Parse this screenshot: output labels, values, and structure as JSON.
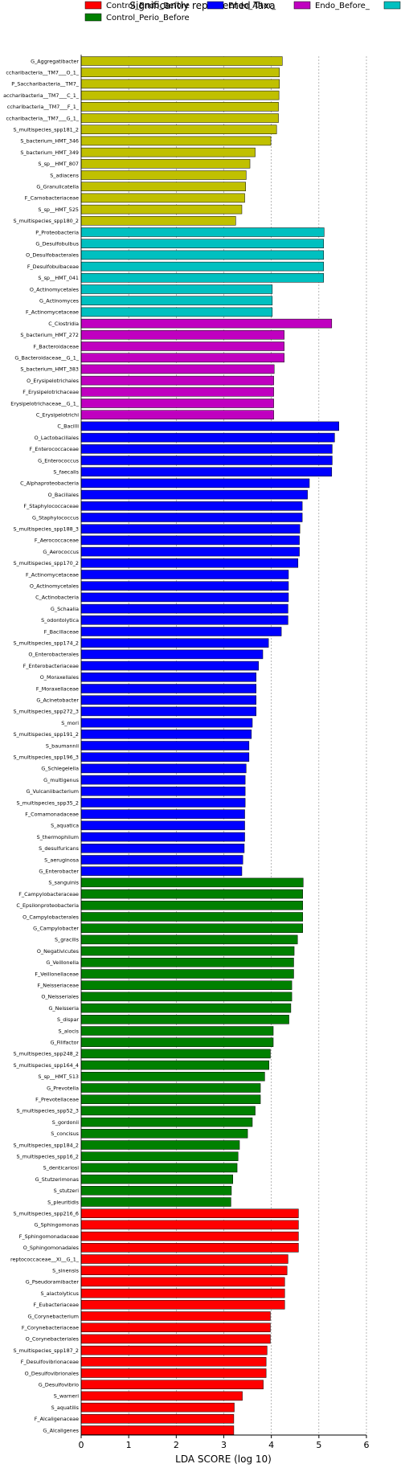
{
  "chart_data": {
    "type": "bar",
    "orientation": "horizontal",
    "title": "Significantly represented Taxa",
    "xlabel": "LDA SCORE (log 10)",
    "ylabel": "",
    "xlim": [
      0,
      6
    ],
    "xticks": [
      0,
      1,
      2,
      3,
      4,
      5,
      6
    ],
    "grid": "vertical dashed at x ticks",
    "legend_placement": "top",
    "colors": {
      "red": "#ff0000",
      "green": "#008000",
      "blue": "#0000ff",
      "magenta": "#c000c0",
      "cyan": "#00c0c0",
      "olive": "#c0c000",
      "bar_edge": "#000000",
      "grid": "#888888"
    },
    "legend": [
      {
        "label": "Control_Endo_Before",
        "color": "red"
      },
      {
        "label": "Control_Perio_Before",
        "color": "green"
      },
      {
        "label": "Endo_After_",
        "color": "blue"
      },
      {
        "label": "Endo_Before_",
        "color": "magenta"
      },
      {
        "label": "",
        "color": "cyan"
      }
    ],
    "bars": [
      {
        "label": "G_Aggregatibacter",
        "value": 4.23,
        "color": "olive"
      },
      {
        "label": "ccharibacteria__TM7___O_1_",
        "value": 4.17,
        "color": "olive"
      },
      {
        "label": "P_Saccharibacteria__TM7_",
        "value": 4.17,
        "color": "olive"
      },
      {
        "label": "accharibacteria__TM7___C_1_",
        "value": 4.16,
        "color": "olive"
      },
      {
        "label": "ccharibacteria__TM7___F_1_",
        "value": 4.15,
        "color": "olive"
      },
      {
        "label": "ccharibacteria__TM7___G_1_",
        "value": 4.15,
        "color": "olive"
      },
      {
        "label": "S_multispecies_spp181_2",
        "value": 4.11,
        "color": "olive"
      },
      {
        "label": "S_bacterium_HMT_346",
        "value": 3.99,
        "color": "olive"
      },
      {
        "label": "S_bacterium_HMT_349",
        "value": 3.66,
        "color": "olive"
      },
      {
        "label": "S_sp__HMT_807",
        "value": 3.55,
        "color": "olive"
      },
      {
        "label": "S_adiacens",
        "value": 3.47,
        "color": "olive"
      },
      {
        "label": "G_Granulicatella",
        "value": 3.46,
        "color": "olive"
      },
      {
        "label": "F_Carnobacteriaceae",
        "value": 3.44,
        "color": "olive"
      },
      {
        "label": "S_sp__HMT_525",
        "value": 3.38,
        "color": "olive"
      },
      {
        "label": "S_multispecies_spp180_2",
        "value": 3.25,
        "color": "olive"
      },
      {
        "label": "P_Proteobacteria",
        "value": 5.11,
        "color": "cyan"
      },
      {
        "label": "G_Desulfobulbus",
        "value": 5.1,
        "color": "cyan"
      },
      {
        "label": "O_Desulfobacterales",
        "value": 5.1,
        "color": "cyan"
      },
      {
        "label": "F_Desulfobulbaceae",
        "value": 5.1,
        "color": "cyan"
      },
      {
        "label": "S_sp__HMT_041",
        "value": 5.1,
        "color": "cyan"
      },
      {
        "label": "O_Actinomycetales",
        "value": 4.02,
        "color": "cyan"
      },
      {
        "label": "G_Actinomyces",
        "value": 4.02,
        "color": "cyan"
      },
      {
        "label": "F_Actinomycetaceae",
        "value": 4.02,
        "color": "cyan"
      },
      {
        "label": "C_Clostridia",
        "value": 5.27,
        "color": "magenta"
      },
      {
        "label": "S_bacterium_HMT_272",
        "value": 4.27,
        "color": "magenta"
      },
      {
        "label": "F_Bacteroidaceae",
        "value": 4.27,
        "color": "magenta"
      },
      {
        "label": "G_Bacteroidaceae__G_1_",
        "value": 4.27,
        "color": "magenta"
      },
      {
        "label": "S_bacterium_HMT_383",
        "value": 4.06,
        "color": "magenta"
      },
      {
        "label": "O_Erysipelotrichales",
        "value": 4.05,
        "color": "magenta"
      },
      {
        "label": "F_Erysipelotrichaceae",
        "value": 4.05,
        "color": "magenta"
      },
      {
        "label": "Erysipelotrichaceae__G_1_",
        "value": 4.05,
        "color": "magenta"
      },
      {
        "label": "C_Erysipelotrichi",
        "value": 4.05,
        "color": "magenta"
      },
      {
        "label": "C_Bacilli",
        "value": 5.42,
        "color": "blue"
      },
      {
        "label": "O_Lactobacillales",
        "value": 5.33,
        "color": "blue"
      },
      {
        "label": "F_Enterococcaceae",
        "value": 5.28,
        "color": "blue"
      },
      {
        "label": "G_Enterococcus",
        "value": 5.28,
        "color": "blue"
      },
      {
        "label": "S_faecalis",
        "value": 5.27,
        "color": "blue"
      },
      {
        "label": "C_Alphaproteobacteria",
        "value": 4.8,
        "color": "blue"
      },
      {
        "label": "O_Bacillales",
        "value": 4.76,
        "color": "blue"
      },
      {
        "label": "F_Staphylococcaceae",
        "value": 4.65,
        "color": "blue"
      },
      {
        "label": "G_Staphylococcus",
        "value": 4.65,
        "color": "blue"
      },
      {
        "label": "S_multispecies_spp188_3",
        "value": 4.6,
        "color": "blue"
      },
      {
        "label": "F_Aerococcaceae",
        "value": 4.59,
        "color": "blue"
      },
      {
        "label": "G_Aerococcus",
        "value": 4.59,
        "color": "blue"
      },
      {
        "label": "S_multispecies_spp170_2",
        "value": 4.56,
        "color": "blue"
      },
      {
        "label": "F_Actinomycetaceae",
        "value": 4.36,
        "color": "blue"
      },
      {
        "label": "O_Actinomycetales",
        "value": 4.36,
        "color": "blue"
      },
      {
        "label": "C_Actinobacteria",
        "value": 4.36,
        "color": "blue"
      },
      {
        "label": "G_Schaalia",
        "value": 4.35,
        "color": "blue"
      },
      {
        "label": "S_odontolytica",
        "value": 4.35,
        "color": "blue"
      },
      {
        "label": "F_Bacillaceae",
        "value": 4.21,
        "color": "blue"
      },
      {
        "label": "S_multispecies_spp174_2",
        "value": 3.94,
        "color": "blue"
      },
      {
        "label": "O_Enterobacterales",
        "value": 3.82,
        "color": "blue"
      },
      {
        "label": "F_Enterobacteriaceae",
        "value": 3.73,
        "color": "blue"
      },
      {
        "label": "O_Moraxellales",
        "value": 3.68,
        "color": "blue"
      },
      {
        "label": "F_Moraxellaceae",
        "value": 3.68,
        "color": "blue"
      },
      {
        "label": "G_Acinetobacter",
        "value": 3.68,
        "color": "blue"
      },
      {
        "label": "S_multispecies_spp272_3",
        "value": 3.68,
        "color": "blue"
      },
      {
        "label": "S_mori",
        "value": 3.6,
        "color": "blue"
      },
      {
        "label": "S_multispecies_spp191_2",
        "value": 3.58,
        "color": "blue"
      },
      {
        "label": "S_baumannii",
        "value": 3.53,
        "color": "blue"
      },
      {
        "label": "S_multispecies_spp196_3",
        "value": 3.53,
        "color": "blue"
      },
      {
        "label": "G_Schlegelella",
        "value": 3.47,
        "color": "blue"
      },
      {
        "label": "G_multigenus",
        "value": 3.45,
        "color": "blue"
      },
      {
        "label": "G_Vulcaniibacterium",
        "value": 3.45,
        "color": "blue"
      },
      {
        "label": "S_multispecies_spp35_2",
        "value": 3.45,
        "color": "blue"
      },
      {
        "label": "F_Comamonadaceae",
        "value": 3.44,
        "color": "blue"
      },
      {
        "label": "S_aquatica",
        "value": 3.44,
        "color": "blue"
      },
      {
        "label": "S_thermophilum",
        "value": 3.44,
        "color": "blue"
      },
      {
        "label": "S_desulfuricans",
        "value": 3.43,
        "color": "blue"
      },
      {
        "label": "S_aeruginosa",
        "value": 3.4,
        "color": "blue"
      },
      {
        "label": "G_Enterobacter",
        "value": 3.38,
        "color": "blue"
      },
      {
        "label": "S_sanguinis",
        "value": 4.67,
        "color": "green"
      },
      {
        "label": "F_Campylobacteraceae",
        "value": 4.66,
        "color": "green"
      },
      {
        "label": "C_Epsilonproteobacteria",
        "value": 4.66,
        "color": "green"
      },
      {
        "label": "O_Campylobacterales",
        "value": 4.66,
        "color": "green"
      },
      {
        "label": "G_Campylobacter",
        "value": 4.66,
        "color": "green"
      },
      {
        "label": "S_gracilis",
        "value": 4.55,
        "color": "green"
      },
      {
        "label": "O_Negativicutes",
        "value": 4.48,
        "color": "green"
      },
      {
        "label": "G_Veillonella",
        "value": 4.47,
        "color": "green"
      },
      {
        "label": "F_Veillonellaceae",
        "value": 4.47,
        "color": "green"
      },
      {
        "label": "F_Neisseriaceae",
        "value": 4.43,
        "color": "green"
      },
      {
        "label": "O_Neisseriales",
        "value": 4.43,
        "color": "green"
      },
      {
        "label": "G_Neisseria",
        "value": 4.41,
        "color": "green"
      },
      {
        "label": "S_dispar",
        "value": 4.37,
        "color": "green"
      },
      {
        "label": "S_alocis",
        "value": 4.04,
        "color": "green"
      },
      {
        "label": "G_Filifactor",
        "value": 4.04,
        "color": "green"
      },
      {
        "label": "S_multispecies_spp248_2",
        "value": 3.98,
        "color": "green"
      },
      {
        "label": "S_multispecies_spp164_4",
        "value": 3.95,
        "color": "green"
      },
      {
        "label": "S_sp__HMT_513",
        "value": 3.86,
        "color": "green"
      },
      {
        "label": "G_Prevotella",
        "value": 3.77,
        "color": "green"
      },
      {
        "label": "F_Prevotellaceae",
        "value": 3.77,
        "color": "green"
      },
      {
        "label": "S_multispecies_spp52_3",
        "value": 3.66,
        "color": "green"
      },
      {
        "label": "S_gordonii",
        "value": 3.6,
        "color": "green"
      },
      {
        "label": "S_concisus",
        "value": 3.5,
        "color": "green"
      },
      {
        "label": "S_multispecies_spp184_2",
        "value": 3.33,
        "color": "green"
      },
      {
        "label": "S_multispecies_spp16_2",
        "value": 3.3,
        "color": "green"
      },
      {
        "label": "S_denticariosi",
        "value": 3.28,
        "color": "green"
      },
      {
        "label": "G_Stutzerimonas",
        "value": 3.19,
        "color": "green"
      },
      {
        "label": "S_stutzeri",
        "value": 3.16,
        "color": "green"
      },
      {
        "label": "S_pleuritidis",
        "value": 3.15,
        "color": "green"
      },
      {
        "label": "S_multispecies_spp216_6",
        "value": 4.57,
        "color": "red"
      },
      {
        "label": "G_Sphingomonas",
        "value": 4.57,
        "color": "red"
      },
      {
        "label": "F_Sphingomonadaceae",
        "value": 4.57,
        "color": "red"
      },
      {
        "label": "O_Sphingomonadales",
        "value": 4.57,
        "color": "red"
      },
      {
        "label": "reptococcaceae__XI__G_1_",
        "value": 4.35,
        "color": "red"
      },
      {
        "label": "S_sinensis",
        "value": 4.33,
        "color": "red"
      },
      {
        "label": "G_Pseudoramibacter",
        "value": 4.28,
        "color": "red"
      },
      {
        "label": "S_alactolyticus",
        "value": 4.28,
        "color": "red"
      },
      {
        "label": "F_Eubacteriaceae",
        "value": 4.28,
        "color": "red"
      },
      {
        "label": "G_Corynebacterium",
        "value": 3.98,
        "color": "red"
      },
      {
        "label": "F_Corynebacteriaceae",
        "value": 3.98,
        "color": "red"
      },
      {
        "label": "O_Corynebacteriales",
        "value": 3.98,
        "color": "red"
      },
      {
        "label": "S_multispecies_spp187_2",
        "value": 3.91,
        "color": "red"
      },
      {
        "label": "F_Desulfovibrionaceae",
        "value": 3.89,
        "color": "red"
      },
      {
        "label": "O_Desulfovibrionales",
        "value": 3.89,
        "color": "red"
      },
      {
        "label": "G_Desulfovibrio",
        "value": 3.83,
        "color": "red"
      },
      {
        "label": "S_warneri",
        "value": 3.39,
        "color": "red"
      },
      {
        "label": "S_aquatilis",
        "value": 3.22,
        "color": "red"
      },
      {
        "label": "F_Alcaligenaceae",
        "value": 3.21,
        "color": "red"
      },
      {
        "label": "G_Alcaligenes",
        "value": 3.21,
        "color": "red"
      }
    ]
  }
}
